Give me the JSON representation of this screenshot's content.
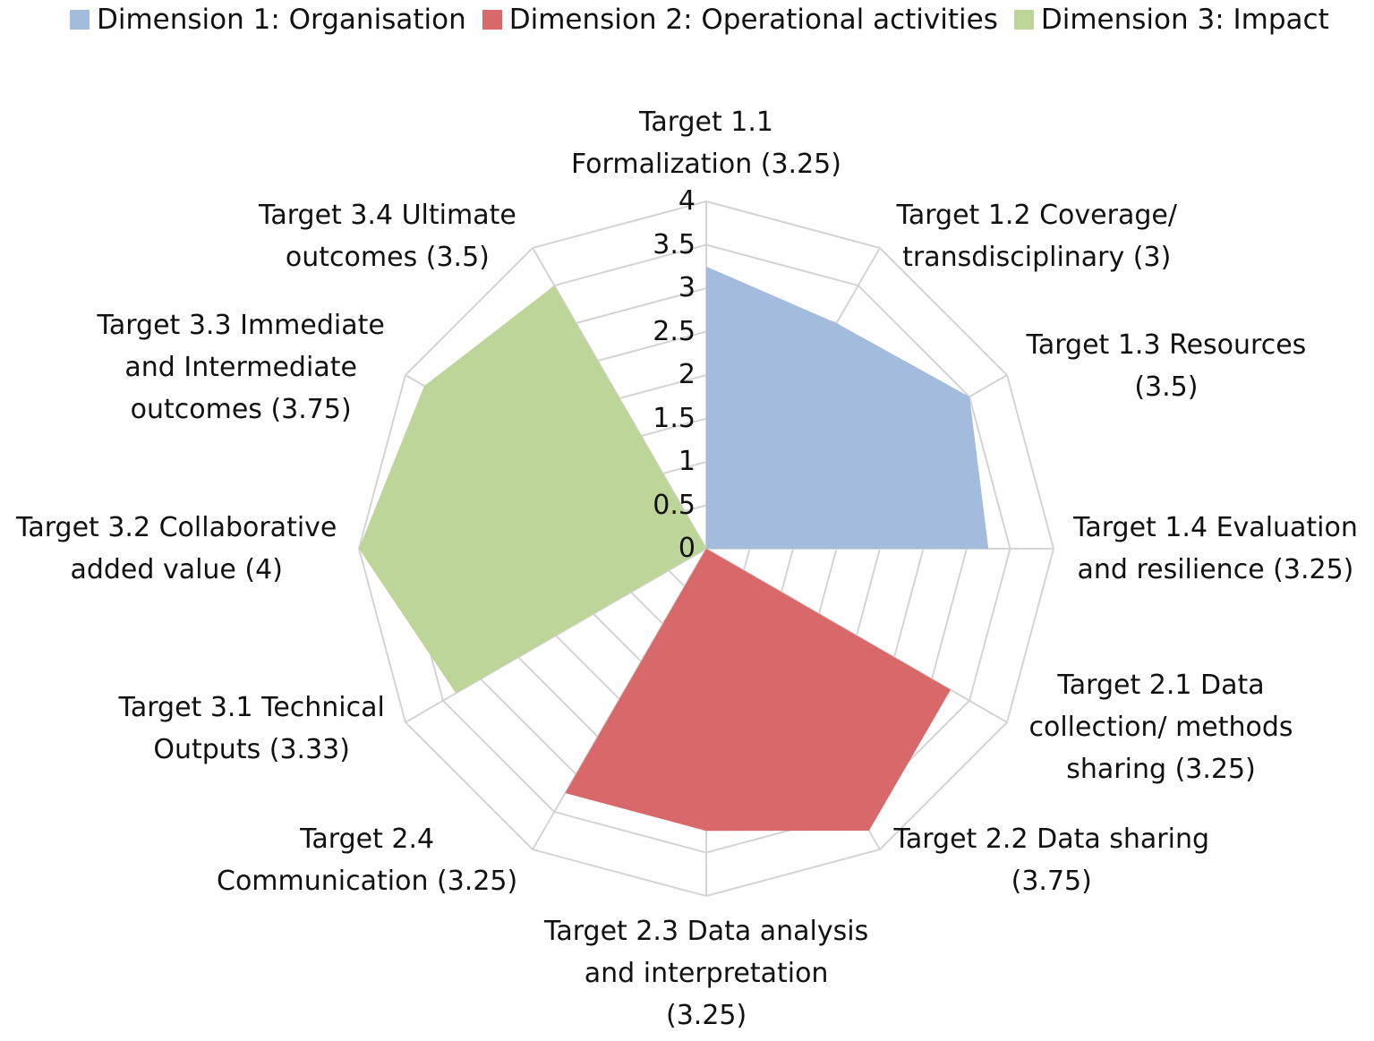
{
  "chart_data": {
    "type": "radar",
    "title": "",
    "rlim": [
      0,
      4
    ],
    "ticks": [
      "0",
      "0.5",
      "1",
      "1.5",
      "2",
      "2.5",
      "3",
      "3.5",
      "4"
    ],
    "legend": [
      {
        "name": "Dimension 1: Organisation",
        "color": "#a3bbdc"
      },
      {
        "name": "Dimension 2: Operational activities",
        "color": "#d9686a"
      },
      {
        "name": "Dimension 3: Impact",
        "color": "#bdd598"
      }
    ],
    "axes": [
      {
        "lines": [
          "Target 1.1",
          "Formalization (3.25)"
        ],
        "value": 3.25,
        "dim": 0
      },
      {
        "lines": [
          "Target 1.2 Coverage/",
          "transdisciplinary (3)"
        ],
        "value": 3,
        "dim": 0
      },
      {
        "lines": [
          "Target 1.3 Resources",
          "(3.5)"
        ],
        "value": 3.5,
        "dim": 0
      },
      {
        "lines": [
          "Target 1.4 Evaluation",
          "and resilience (3.25)"
        ],
        "value": 3.25,
        "dim": 0
      },
      {
        "lines": [
          "Target 2.1 Data",
          "collection/ methods",
          "sharing (3.25)"
        ],
        "value": 3.25,
        "dim": 1
      },
      {
        "lines": [
          "Target 2.2 Data sharing",
          "(3.75)"
        ],
        "value": 3.75,
        "dim": 1
      },
      {
        "lines": [
          "Target 2.3 Data analysis",
          "and interpretation",
          "(3.25)"
        ],
        "value": 3.25,
        "dim": 1
      },
      {
        "lines": [
          "Target 2.4",
          "Communication (3.25)"
        ],
        "value": 3.25,
        "dim": 1
      },
      {
        "lines": [
          "Target 3.1 Technical",
          "Outputs (3.33)"
        ],
        "value": 3.33,
        "dim": 2
      },
      {
        "lines": [
          "Target 3.2 Collaborative",
          "added value (4)"
        ],
        "value": 4,
        "dim": 2
      },
      {
        "lines": [
          "Target 3.3 Immediate",
          "and Intermediate",
          "outcomes (3.75)"
        ],
        "value": 3.75,
        "dim": 2
      },
      {
        "lines": [
          "Target 3.4 Ultimate",
          "outcomes (3.5)"
        ],
        "value": 3.5,
        "dim": 2
      }
    ]
  }
}
